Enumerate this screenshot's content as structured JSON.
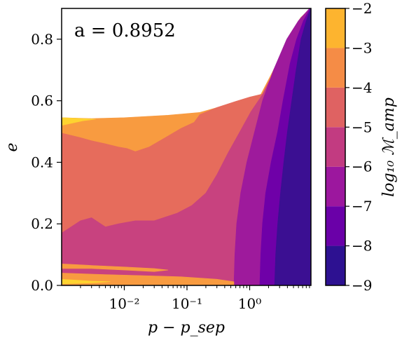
{
  "chart_data": {
    "type": "heatmap",
    "subtype": "filled-contour",
    "annotation": "a = 0.8952",
    "xlabel": "p − p_sep",
    "ylabel": "e",
    "x_scale": "log",
    "xlim": [
      0.001,
      9.5
    ],
    "ylim": [
      0.0,
      0.9
    ],
    "x_ticks": [
      {
        "value": 0.01,
        "label": "10⁻²"
      },
      {
        "value": 0.1,
        "label": "10⁻¹"
      },
      {
        "value": 1,
        "label": "10⁰"
      }
    ],
    "y_ticks": [
      {
        "value": 0.0,
        "label": "0.0"
      },
      {
        "value": 0.2,
        "label": "0.2"
      },
      {
        "value": 0.4,
        "label": "0.4"
      },
      {
        "value": 0.6,
        "label": "0.6"
      },
      {
        "value": 0.8,
        "label": "0.8"
      }
    ],
    "colorbar": {
      "label": "log₁₀ ℳ_amp",
      "levels": [
        -9,
        -8,
        -7,
        -6,
        -5,
        -4,
        -3,
        -2
      ],
      "colors": [
        "#2d1191",
        "#6a00a8",
        "#9c179e",
        "#c23b81",
        "#df6262",
        "#f58c46",
        "#fdb42f",
        "#f0f921"
      ]
    },
    "regions": [
      {
        "level": "-4 to -3",
        "color": "#f89b40",
        "points": [
          [
            0.001,
            0.545
          ],
          [
            0.003,
            0.542
          ],
          [
            0.01,
            0.545
          ],
          [
            0.05,
            0.553
          ],
          [
            0.16,
            0.562
          ],
          [
            0.4,
            0.585
          ],
          [
            0.8,
            0.6
          ],
          [
            1.5,
            0.62
          ],
          [
            2.7,
            0.72
          ],
          [
            4.2,
            0.81
          ],
          [
            6.5,
            0.87
          ],
          [
            9.2,
            0.9
          ],
          [
            9.5,
            0.9
          ],
          [
            9.5,
            0
          ],
          [
            0.001,
            0
          ]
        ]
      },
      {
        "level": "-5 to -4",
        "color": "#e66c5c",
        "points": [
          [
            0.001,
            0.495
          ],
          [
            0.002,
            0.48
          ],
          [
            0.003,
            0.47
          ],
          [
            0.005,
            0.46
          ],
          [
            0.008,
            0.45
          ],
          [
            0.011,
            0.445
          ],
          [
            0.015,
            0.435
          ],
          [
            0.025,
            0.45
          ],
          [
            0.045,
            0.48
          ],
          [
            0.08,
            0.51
          ],
          [
            0.13,
            0.53
          ],
          [
            0.16,
            0.555
          ],
          [
            0.3,
            0.578
          ],
          [
            0.6,
            0.598
          ],
          [
            1.0,
            0.612
          ],
          [
            1.6,
            0.622
          ],
          [
            2.8,
            0.72
          ],
          [
            4.3,
            0.81
          ],
          [
            6.6,
            0.87
          ],
          [
            9.3,
            0.9
          ],
          [
            9.5,
            0.9
          ],
          [
            9.5,
            0
          ],
          [
            0.001,
            0
          ]
        ]
      },
      {
        "level": "-6 to -5",
        "color": "#c8427f",
        "points": [
          [
            0.001,
            0.17
          ],
          [
            0.002,
            0.21
          ],
          [
            0.003,
            0.22
          ],
          [
            0.005,
            0.19
          ],
          [
            0.008,
            0.2
          ],
          [
            0.015,
            0.21
          ],
          [
            0.03,
            0.21
          ],
          [
            0.07,
            0.235
          ],
          [
            0.12,
            0.26
          ],
          [
            0.2,
            0.3
          ],
          [
            0.3,
            0.36
          ],
          [
            0.45,
            0.43
          ],
          [
            0.7,
            0.5
          ],
          [
            1.05,
            0.565
          ],
          [
            1.6,
            0.62
          ],
          [
            2.8,
            0.72
          ],
          [
            4.3,
            0.81
          ],
          [
            6.6,
            0.87
          ],
          [
            9.3,
            0.9
          ],
          [
            9.5,
            0.9
          ],
          [
            9.5,
            0
          ],
          [
            0.001,
            0
          ]
        ]
      },
      {
        "level": "-7 to -6",
        "color": "#9e1a9c",
        "points": [
          [
            0.56,
            0
          ],
          [
            0.58,
            0.1
          ],
          [
            0.62,
            0.2
          ],
          [
            0.72,
            0.3
          ],
          [
            0.9,
            0.4
          ],
          [
            1.2,
            0.5
          ],
          [
            1.6,
            0.6
          ],
          [
            2.4,
            0.7
          ],
          [
            3.9,
            0.8
          ],
          [
            6.0,
            0.86
          ],
          [
            9.0,
            0.9
          ],
          [
            9.5,
            0.9
          ],
          [
            9.5,
            0
          ]
        ]
      },
      {
        "level": "-8 to -7",
        "color": "#6f00a8",
        "points": [
          [
            1.45,
            0
          ],
          [
            1.5,
            0.1
          ],
          [
            1.6,
            0.2
          ],
          [
            1.8,
            0.3
          ],
          [
            2.2,
            0.4
          ],
          [
            2.8,
            0.5
          ],
          [
            3.4,
            0.6
          ],
          [
            4.4,
            0.72
          ],
          [
            5.6,
            0.8
          ],
          [
            7.2,
            0.86
          ],
          [
            9.2,
            0.9
          ],
          [
            9.5,
            0.9
          ],
          [
            9.5,
            0
          ]
        ]
      },
      {
        "level": "-9 to -8",
        "color": "#3b0f92",
        "points": [
          [
            2.5,
            0
          ],
          [
            2.6,
            0.1
          ],
          [
            2.8,
            0.2
          ],
          [
            3.1,
            0.3
          ],
          [
            3.5,
            0.4
          ],
          [
            4.0,
            0.5
          ],
          [
            4.7,
            0.6
          ],
          [
            5.5,
            0.7
          ],
          [
            6.6,
            0.8
          ],
          [
            8.0,
            0.86
          ],
          [
            9.4,
            0.9
          ],
          [
            9.5,
            0.9
          ],
          [
            9.5,
            0
          ]
        ]
      },
      {
        "level": "-3 to -2",
        "color": "#fed330",
        "points": [
          [
            0.001,
            0.545
          ],
          [
            0.0035,
            0.54
          ],
          [
            0.0022,
            0.535
          ],
          [
            0.001,
            0.52
          ]
        ]
      },
      {
        "level": "-4 to -3",
        "color": "#f89b40",
        "points": [
          [
            0.001,
            0.07
          ],
          [
            0.003,
            0.065
          ],
          [
            0.01,
            0.06
          ],
          [
            0.03,
            0.055
          ],
          [
            0.05,
            0.05
          ],
          [
            0.03,
            0.045
          ],
          [
            0.01,
            0.05
          ],
          [
            0.003,
            0.055
          ],
          [
            0.001,
            0.055
          ]
        ]
      },
      {
        "level": "-4 to -3",
        "color": "#f89b40",
        "points": [
          [
            0.001,
            0.04
          ],
          [
            0.005,
            0.035
          ],
          [
            0.02,
            0.032
          ],
          [
            0.08,
            0.028
          ],
          [
            0.3,
            0.02
          ],
          [
            0.56,
            0.012
          ],
          [
            0.56,
            0.0
          ],
          [
            0.001,
            0.0
          ]
        ]
      },
      {
        "level": "-3 to -2",
        "color": "#fed330",
        "points": [
          [
            0.001,
            0.02
          ],
          [
            0.003,
            0.014
          ],
          [
            0.006,
            0.012
          ],
          [
            0.003,
            0.008
          ],
          [
            0.001,
            0.005
          ]
        ]
      }
    ]
  }
}
